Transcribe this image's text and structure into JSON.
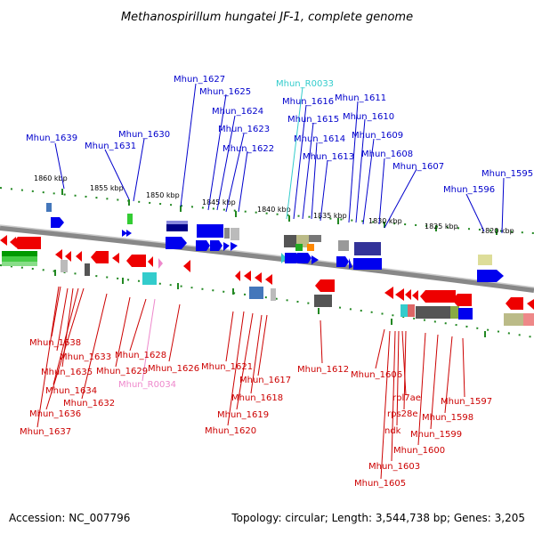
{
  "title": "Methanospirillum hungatei JF-1, complete genome",
  "footer": {
    "accession": "Accession: NC_007796",
    "topology": "Topology: circular; Length: 3,544,738 bp; Genes: 3,205"
  },
  "colors": {
    "plus_strand": "#0000ee",
    "minus_strand": "#ee0000",
    "rna_plus": "#33cccc",
    "rna_minus": "#ee88cc",
    "backbone": "#888888",
    "tick_dots": "#228822"
  },
  "ticks": [
    "1860 kbp",
    "1855 kbp",
    "1850 kbp",
    "1845 kbp",
    "1840 kbp",
    "1835 kbp",
    "1830 kbp",
    "1825 kbp",
    "1820 kbp"
  ],
  "top_labels": [
    "Mhun_1639",
    "Mhun_1631",
    "Mhun_1630",
    "Mhun_1627",
    "Mhun_1625",
    "Mhun_1624",
    "Mhun_1623",
    "Mhun_1622",
    "Mhun_R0033",
    "Mhun_1616",
    "Mhun_1615",
    "Mhun_1614",
    "Mhun_1613",
    "Mhun_1611",
    "Mhun_1610",
    "Mhun_1609",
    "Mhun_1608",
    "Mhun_1607",
    "Mhun_1596",
    "Mhun_1595"
  ],
  "bottom_labels": [
    "Mhun_1638",
    "Mhun_1633",
    "Mhun_1635",
    "Mhun_1634",
    "Mhun_1636",
    "Mhun_1637",
    "Mhun_1628",
    "Mhun_1629",
    "Mhun_R0034",
    "Mhun_1626",
    "Mhun_1632",
    "Mhun_1621",
    "Mhun_1617",
    "Mhun_1618",
    "Mhun_1619",
    "Mhun_1620",
    "Mhun_1612",
    "Mhun_1606",
    "rpl7ae",
    "rps28e",
    "ndk",
    "Mhun_1603",
    "Mhun_1605",
    "Mhun_1597",
    "Mhun_1598",
    "Mhun_1599",
    "Mhun_1600"
  ]
}
